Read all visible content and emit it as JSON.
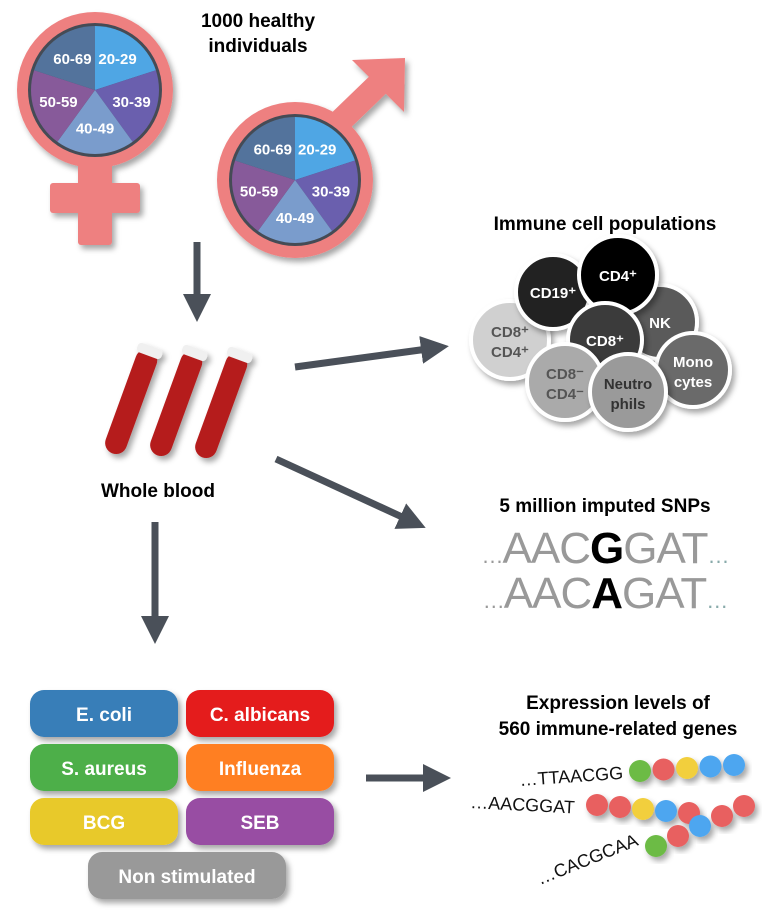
{
  "population": {
    "title_line1": "1000 healthy",
    "title_line2": "individuals",
    "age_groups": [
      "20-29",
      "30-39",
      "40-49",
      "50-59",
      "60-69"
    ],
    "age_colors": [
      "#4fa6e4",
      "#6a5fae",
      "#7a9ccc",
      "#875a9a",
      "#52739c"
    ],
    "symbol_color": "#ee8080"
  },
  "sample": {
    "label": "Whole blood"
  },
  "cells": {
    "title": "Immune cell populations",
    "items": [
      {
        "l1": "CD8⁺",
        "l2": "CD4⁺",
        "fill": "#d0d0d0",
        "text": "#555"
      },
      {
        "l1": "CD19⁺",
        "l2": "",
        "fill": "#222222",
        "text": "#fff"
      },
      {
        "l1": "NK",
        "l2": "",
        "fill": "#5a5a5a",
        "text": "#fff"
      },
      {
        "l1": "CD4⁺",
        "l2": "",
        "fill": "#000000",
        "text": "#fff"
      },
      {
        "l1": "CD8⁺",
        "l2": "",
        "fill": "#3a3a3a",
        "text": "#fff"
      },
      {
        "l1": "Mono",
        "l2": "cytes",
        "fill": "#6b6b6b",
        "text": "#fff"
      },
      {
        "l1": "CD8⁻",
        "l2": "CD4⁻",
        "fill": "#aaaaaa",
        "text": "#555"
      },
      {
        "l1": "Neutro",
        "l2": "phils",
        "fill": "#9a9a9a",
        "text": "#333"
      }
    ]
  },
  "snps": {
    "title": "5 million imputed SNPs",
    "dots": "…",
    "seq1": {
      "pre": "AAC",
      "snp": "G",
      "post": "GAT"
    },
    "seq2": {
      "pre": "AAC",
      "snp": "A",
      "post": "GAT"
    }
  },
  "stimuli": [
    {
      "label": "E. coli",
      "color": "#377eb8"
    },
    {
      "label": "C. albicans",
      "color": "#e41a1c"
    },
    {
      "label": "S. aureus",
      "color": "#4daf4a"
    },
    {
      "label": "Influenza",
      "color": "#ff7f23"
    },
    {
      "label": "BCG",
      "color": "#e8c92a"
    },
    {
      "label": "SEB",
      "color": "#984ea3"
    },
    {
      "label": "Non stimulated",
      "color": "#999999"
    }
  ],
  "expression": {
    "title_line1": "Expression levels of",
    "title_line2": "560 immune-related genes",
    "genes": [
      {
        "seq": "…TTAACGG",
        "beads": [
          "#6cbb45",
          "#e86060",
          "#f2cf3c",
          "#4ea6f0",
          "#4ea6f0"
        ]
      },
      {
        "seq": "…AACGGAT",
        "beads": [
          "#e86060",
          "#e86060",
          "#f2cf3c",
          "#4ea6f0",
          "#e86060"
        ]
      },
      {
        "seq": "…CACGCAA",
        "beads": [
          "#6cbb45",
          "#e86060",
          "#4ea6f0",
          "#e86060",
          "#e86060"
        ]
      }
    ]
  },
  "arrow_color": "#4a5059"
}
